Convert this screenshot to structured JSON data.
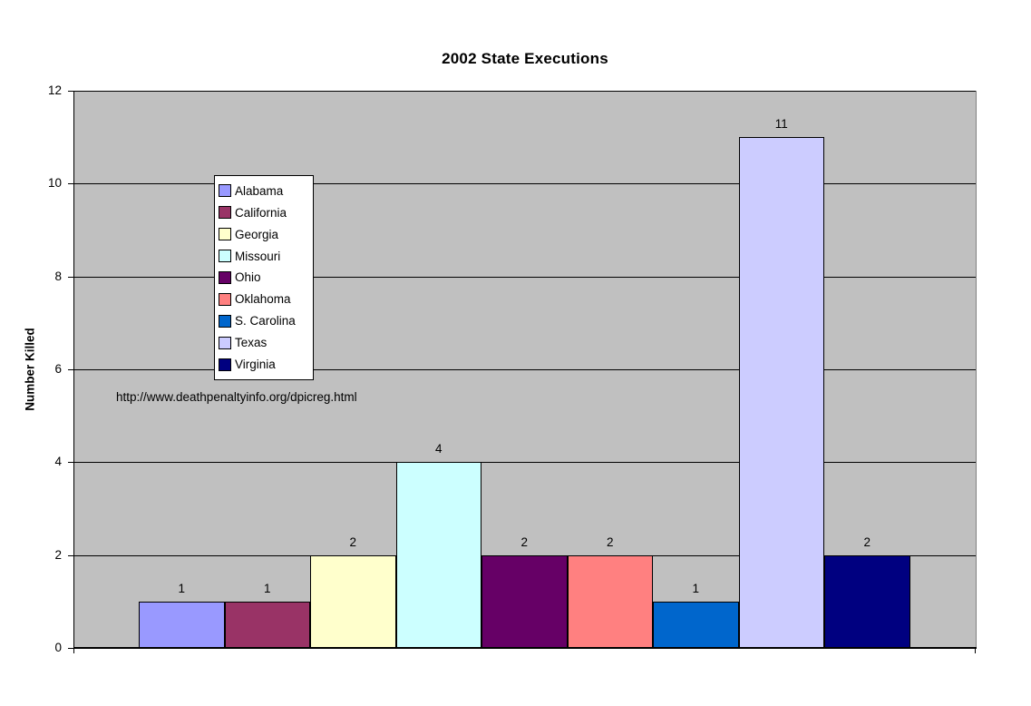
{
  "chart_data": {
    "type": "bar",
    "title": "2002 State Executions",
    "ylabel": "Number Killed",
    "xlabel": "",
    "annotation": "http://www.deathpenaltyinfo.org/dpicreg.html",
    "ylim": [
      0,
      12
    ],
    "yticks": [
      0,
      2,
      4,
      6,
      8,
      10,
      12
    ],
    "grid": true,
    "legend_position": "inside-upper-left",
    "plot_background_color": "#C0C0C0",
    "gridline_color": "#000000",
    "series": [
      {
        "name": "Alabama",
        "value": 1,
        "color": "#9999FF"
      },
      {
        "name": "California",
        "value": 1,
        "color": "#993366"
      },
      {
        "name": "Georgia",
        "value": 2,
        "color": "#FFFFCC"
      },
      {
        "name": "Missouri",
        "value": 4,
        "color": "#CCFFFF"
      },
      {
        "name": "Ohio",
        "value": 2,
        "color": "#660066"
      },
      {
        "name": "Oklahoma",
        "value": 2,
        "color": "#FF8080"
      },
      {
        "name": "S. Carolina",
        "value": 1,
        "color": "#0066CC"
      },
      {
        "name": "Texas",
        "value": 11,
        "color": "#CCCCFF"
      },
      {
        "name": "Virginia",
        "value": 2,
        "color": "#000080"
      }
    ]
  }
}
